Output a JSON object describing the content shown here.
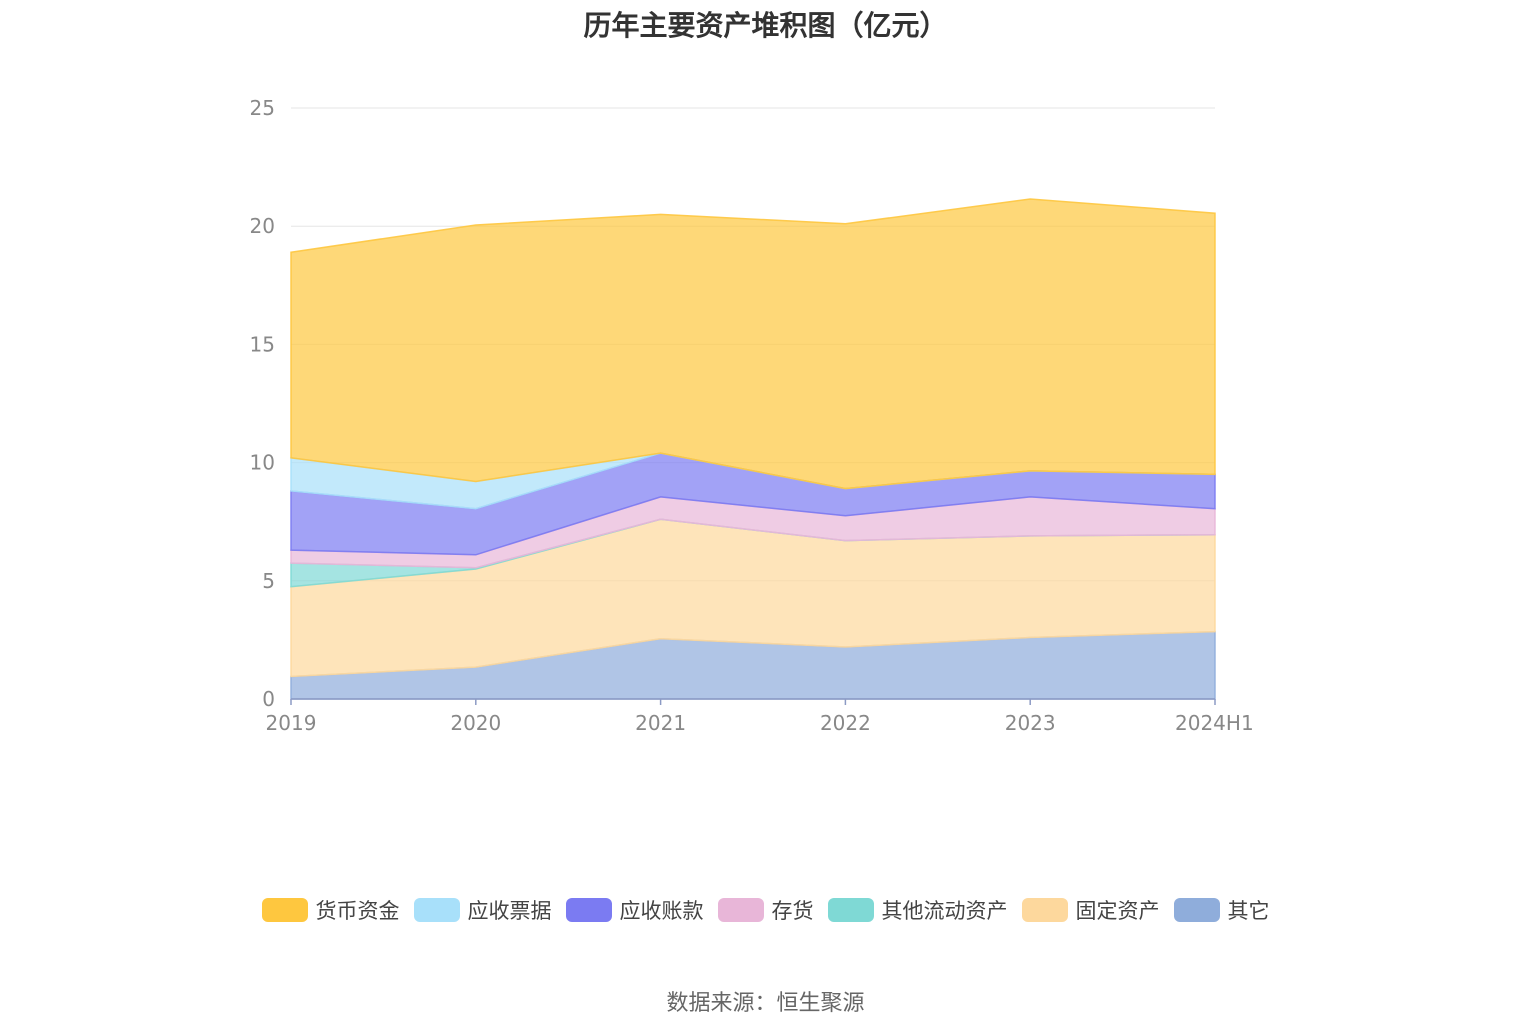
{
  "chart_data": {
    "type": "area",
    "stacked": true,
    "title": "历年主要资产堆积图（亿元）",
    "categories": [
      "2019",
      "2020",
      "2021",
      "2022",
      "2023",
      "2024H1"
    ],
    "ylim": [
      0,
      25
    ],
    "yticks": [
      "0",
      "5",
      "10",
      "15",
      "20",
      "25"
    ],
    "grid": true,
    "legend_position": "bottom",
    "series": [
      {
        "name": "其它",
        "color": "#8FADDB",
        "values": [
          0.95,
          1.35,
          2.55,
          2.2,
          2.6,
          2.85
        ]
      },
      {
        "name": "固定资产",
        "color": "#FDD89D",
        "values": [
          3.8,
          4.15,
          5.05,
          4.5,
          4.3,
          4.1
        ]
      },
      {
        "name": "其他流动资产",
        "color": "#7FD9D5",
        "values": [
          1.0,
          0.05,
          0.0,
          0.0,
          0.0,
          0.0
        ]
      },
      {
        "name": "存货",
        "color": "#E8B6D8",
        "values": [
          0.55,
          0.55,
          0.95,
          1.05,
          1.65,
          1.1
        ]
      },
      {
        "name": "应收账款",
        "color": "#7B7BF2",
        "values": [
          2.5,
          1.95,
          1.85,
          1.15,
          1.1,
          1.45
        ]
      },
      {
        "name": "应收票据",
        "color": "#A8E0FA",
        "values": [
          1.4,
          1.15,
          0.0,
          0.0,
          0.0,
          0.0
        ]
      },
      {
        "name": "货币资金",
        "color": "#FEC73F",
        "values": [
          8.7,
          10.85,
          10.1,
          11.2,
          11.5,
          11.05
        ]
      }
    ]
  },
  "legend_order": [
    "货币资金",
    "应收票据",
    "应收账款",
    "存货",
    "其他流动资产",
    "固定资产",
    "其它"
  ],
  "source": "数据来源：恒生聚源"
}
